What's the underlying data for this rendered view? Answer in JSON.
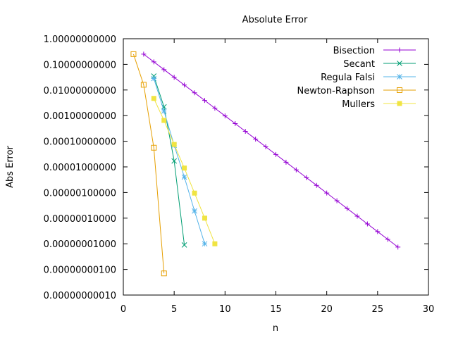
{
  "chart_data": {
    "type": "line",
    "title": "Absolute Error",
    "xlabel": "n",
    "ylabel": "Abs Error",
    "xlim": [
      0,
      30
    ],
    "x_ticks": [
      0,
      5,
      10,
      15,
      20,
      25,
      30
    ],
    "x_tick_labels": [
      "0",
      "5",
      "10",
      "15",
      "20",
      "25",
      "30"
    ],
    "y_scale": "log",
    "ylim": [
      1e-10,
      1
    ],
    "y_ticks": [
      1e-10,
      1e-09,
      1e-08,
      1e-07,
      1e-06,
      1e-05,
      0.0001,
      0.001,
      0.01,
      0.1,
      1
    ],
    "y_tick_labels": [
      "0.00000000010",
      "0.00000000100",
      "0.00000001000",
      "0.00000010000",
      "0.00000100000",
      "0.00001000000",
      "0.00010000000",
      "0.00100000000",
      "0.01000000000",
      "0.10000000000",
      "1.00000000000"
    ],
    "grid": false,
    "legend_position": "top-right",
    "series": [
      {
        "name": "Bisection",
        "color": "#9400d3",
        "marker": "plus",
        "x": [
          2,
          3,
          4,
          5,
          6,
          7,
          8,
          9,
          10,
          11,
          12,
          13,
          14,
          15,
          16,
          17,
          18,
          19,
          20,
          21,
          22,
          23,
          24,
          25,
          26,
          27
        ],
        "y": [
          0.25,
          0.125,
          0.0625,
          0.03125,
          0.015625,
          0.0078125,
          0.00390625,
          0.001953125,
          0.0009765625,
          0.00048828125,
          0.000244140625,
          0.0001220703125,
          6.103515625e-05,
          3.0517578125e-05,
          1.52587890625e-05,
          7.62939453125e-06,
          3.814697265625e-06,
          1.9073486328125e-06,
          9.5367431640625e-07,
          4.76837158203125e-07,
          2.384185791015625e-07,
          1.1920928955078125e-07,
          5.960464477539063e-08,
          2.9802322387695312e-08,
          1.4901161193847656e-08,
          7.450580596923828e-09
        ]
      },
      {
        "name": "Secant",
        "color": "#009e73",
        "marker": "cross",
        "x": [
          3,
          4,
          5,
          6
        ],
        "y": [
          0.035,
          0.0022,
          1.7e-05,
          9e-09
        ]
      },
      {
        "name": "Regula Falsi",
        "color": "#56b4e9",
        "marker": "star",
        "x": [
          3,
          4,
          5,
          6,
          7,
          8
        ],
        "y": [
          0.028,
          0.0015,
          7e-05,
          4e-06,
          1.9e-07,
          1e-08
        ]
      },
      {
        "name": "Newton-Raphson",
        "color": "#e69f00",
        "marker": "open-square",
        "x": [
          1,
          2,
          3,
          4
        ],
        "y": [
          0.25,
          0.016,
          5.6e-05,
          7e-10
        ]
      },
      {
        "name": "Mullers",
        "color": "#f0e442",
        "marker": "filled-square",
        "x": [
          3,
          4,
          5,
          6,
          7,
          8,
          9
        ],
        "y": [
          0.0047,
          0.00065,
          7.5e-05,
          9e-06,
          9.5e-07,
          1e-07,
          1e-08
        ]
      }
    ]
  }
}
